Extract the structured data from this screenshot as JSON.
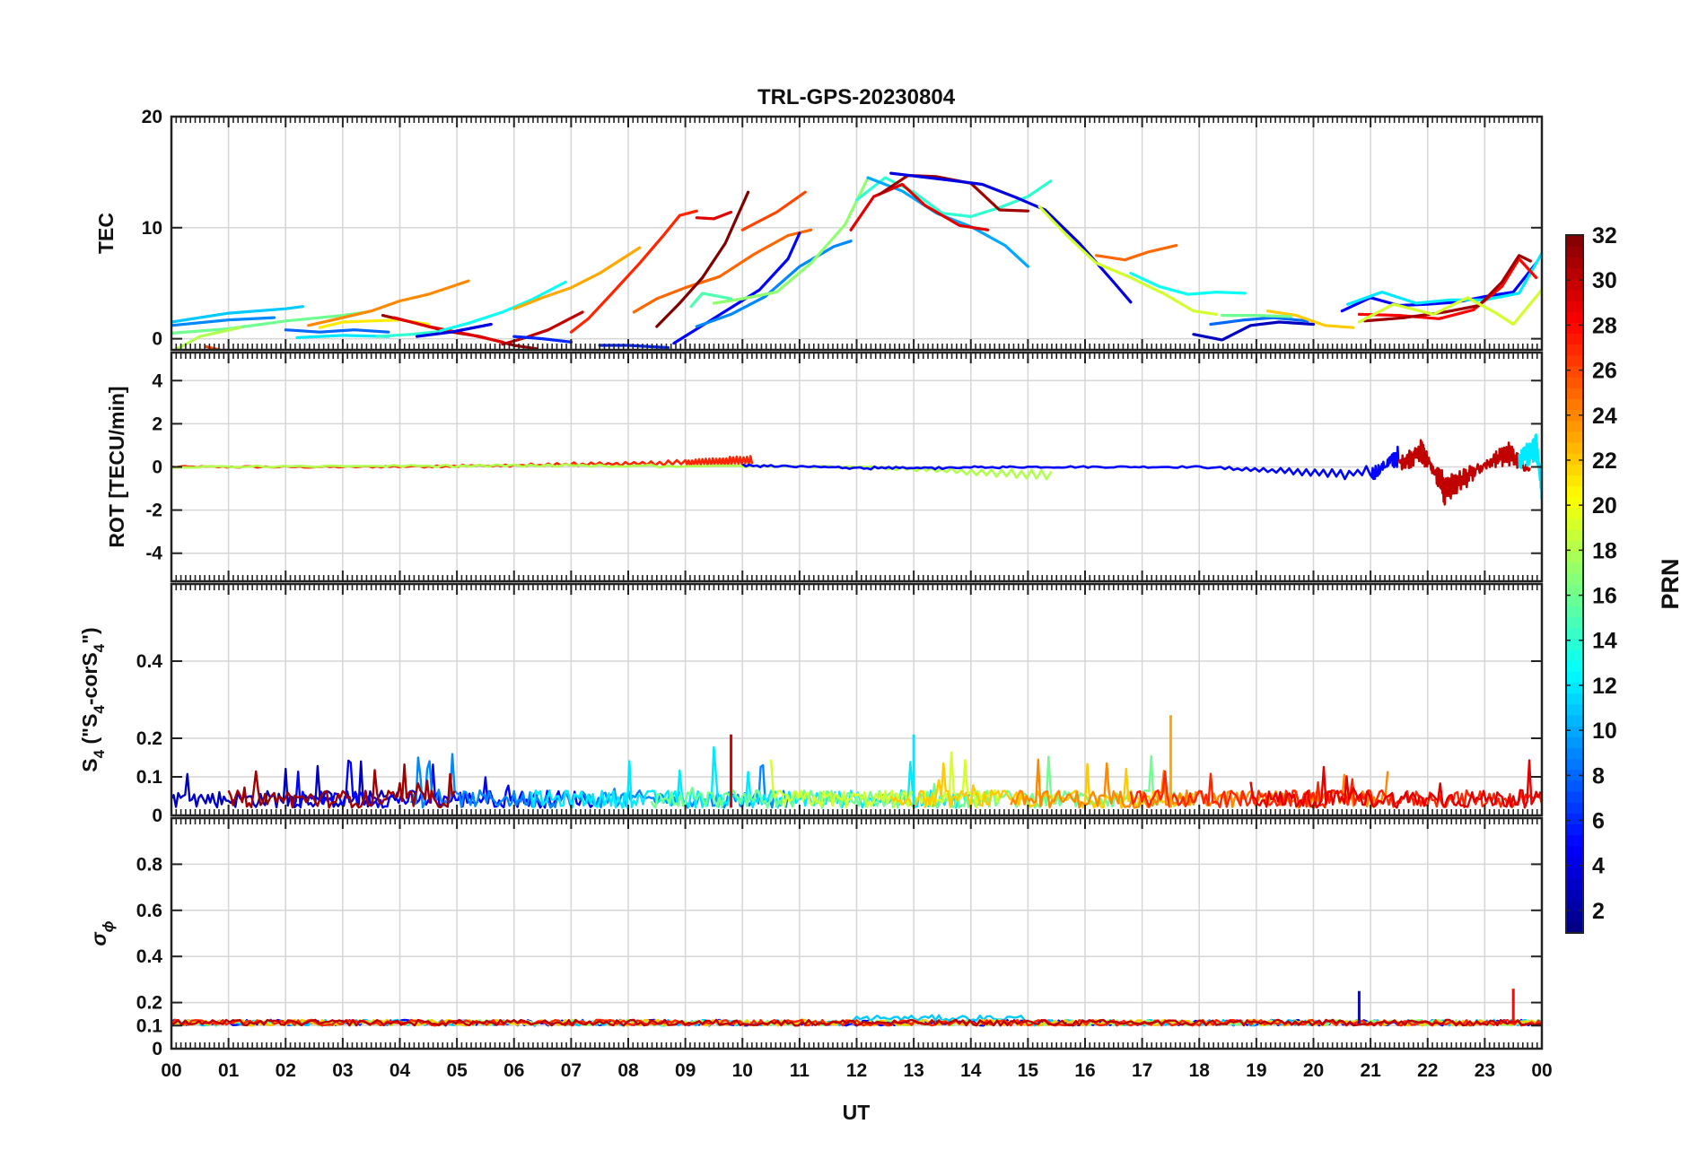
{
  "chart_data": {
    "type": "line",
    "title": "TRL-GPS-20230804",
    "xlabel": "UT",
    "x_ticks": [
      "00",
      "01",
      "02",
      "03",
      "04",
      "05",
      "06",
      "07",
      "08",
      "09",
      "10",
      "11",
      "12",
      "13",
      "14",
      "15",
      "16",
      "17",
      "18",
      "19",
      "20",
      "21",
      "22",
      "23",
      "00"
    ],
    "xlim": [
      0,
      24
    ],
    "grid": true,
    "panels": [
      {
        "ylabel": "TEC",
        "ylim": [
          -1,
          20
        ],
        "yticks": [
          0,
          10,
          20
        ]
      },
      {
        "ylabel": "ROT [TECU/min]",
        "ylim": [
          -5.3,
          5.3
        ],
        "yticks": [
          -4,
          -2,
          0,
          2,
          4
        ]
      },
      {
        "ylabel_parts": [
          "S",
          "4",
          " (\"S",
          "4",
          "-corS",
          "4",
          "\")"
        ],
        "ylim": [
          0,
          0.6
        ],
        "yticks": [
          0,
          0.1,
          0.2,
          0.4
        ]
      },
      {
        "ylabel_parts": [
          "σ",
          "ϕ"
        ],
        "ylim": [
          0,
          1
        ],
        "yticks": [
          0,
          0.1,
          0.2,
          0.4,
          0.6,
          0.8
        ]
      }
    ],
    "colorbar": {
      "label": "PRN",
      "range": [
        1,
        32
      ],
      "ticks": [
        2,
        4,
        6,
        8,
        10,
        12,
        14,
        16,
        18,
        20,
        22,
        24,
        26,
        28,
        30,
        32
      ],
      "colormap": "jet"
    },
    "tec_series": [
      {
        "prn": 11,
        "x": [
          0,
          1,
          2,
          2.3
        ],
        "y": [
          1.5,
          2.3,
          2.7,
          2.9
        ]
      },
      {
        "prn": 9,
        "x": [
          0,
          1,
          1.8
        ],
        "y": [
          1.2,
          1.7,
          1.9
        ]
      },
      {
        "prn": 16,
        "x": [
          0,
          1,
          2,
          3,
          3.4
        ],
        "y": [
          0.5,
          0.9,
          1.6,
          2.1,
          2.4
        ]
      },
      {
        "prn": 18,
        "x": [
          0,
          0.5,
          1.2
        ],
        "y": [
          -1.2,
          0.2,
          1.0
        ]
      },
      {
        "prn": 26,
        "x": [
          0.6,
          1,
          1.5,
          2,
          2.4
        ],
        "y": [
          -0.7,
          -1.2,
          -1.5,
          -1.5,
          -1.0
        ]
      },
      {
        "prn": 24,
        "x": [
          2.4,
          3,
          3.5,
          4,
          4.5,
          5.2
        ],
        "y": [
          1.2,
          1.9,
          2.5,
          3.4,
          4.0,
          5.2
        ]
      },
      {
        "prn": 21,
        "x": [
          2.6,
          3,
          3.5,
          4,
          4.5
        ],
        "y": [
          1.0,
          1.5,
          1.6,
          1.7,
          1.3
        ]
      },
      {
        "prn": 8,
        "x": [
          2,
          2.6,
          3.2,
          3.8
        ],
        "y": [
          0.8,
          0.6,
          0.8,
          0.6
        ]
      },
      {
        "prn": 12,
        "x": [
          2.2,
          3,
          3.8
        ],
        "y": [
          0.1,
          0.3,
          0.2
        ]
      },
      {
        "prn": 14,
        "x": [
          3.6,
          4.2,
          4.8
        ],
        "y": [
          0.2,
          0.4,
          0.7
        ]
      },
      {
        "prn": 31,
        "x": [
          3.7,
          4.2,
          4.8,
          5.4,
          6.0,
          6.4
        ],
        "y": [
          2.1,
          1.5,
          0.7,
          0.2,
          -0.6,
          -0.9
        ]
      },
      {
        "prn": 29,
        "x": [
          3.9,
          4.5,
          5.2,
          5.8
        ],
        "y": [
          1.9,
          1.1,
          0.4,
          -0.3
        ]
      },
      {
        "prn": 4,
        "x": [
          4.3,
          4.9,
          5.6
        ],
        "y": [
          0.2,
          0.6,
          1.3
        ]
      },
      {
        "prn": 13,
        "x": [
          4.7,
          5.2,
          5.8,
          6.3,
          6.9
        ],
        "y": [
          0.7,
          1.4,
          2.4,
          3.5,
          5.1
        ]
      },
      {
        "prn": 23,
        "x": [
          6.0,
          6.5,
          7,
          7.5,
          8.2
        ],
        "y": [
          2.7,
          3.7,
          4.6,
          5.9,
          8.2
        ]
      },
      {
        "prn": 30,
        "x": [
          5.8,
          6.2,
          6.6,
          7.2
        ],
        "y": [
          -0.5,
          0.1,
          0.8,
          2.4
        ]
      },
      {
        "prn": 6,
        "x": [
          6.0,
          6.5,
          7.0
        ],
        "y": [
          0.2,
          0.0,
          -0.3
        ]
      },
      {
        "prn": 32,
        "x": [
          6.5,
          7,
          7.5
        ],
        "y": [
          -1.3,
          -1.6,
          -1.2
        ]
      },
      {
        "prn": 27,
        "x": [
          7.0,
          7.3,
          7.7,
          8.2,
          8.6,
          8.9,
          9.2
        ],
        "y": [
          0.6,
          1.8,
          4.0,
          6.8,
          9.2,
          11.1,
          11.5
        ]
      },
      {
        "prn": 29,
        "x": [
          9.2,
          9.5,
          9.8
        ],
        "y": [
          10.9,
          10.8,
          11.4
        ]
      },
      {
        "prn": 25,
        "x": [
          8.1,
          8.5,
          9.0,
          9.6,
          10.2,
          10.8,
          11.2
        ],
        "y": [
          2.4,
          3.6,
          4.6,
          5.6,
          7.6,
          9.3,
          9.8
        ]
      },
      {
        "prn": 26,
        "x": [
          10.0,
          10.6,
          11.1
        ],
        "y": [
          9.8,
          11.4,
          13.2
        ]
      },
      {
        "prn": 32,
        "x": [
          8.5,
          8.9,
          9.3,
          9.7,
          10.1
        ],
        "y": [
          1.1,
          3.2,
          5.5,
          8.6,
          13.2
        ]
      },
      {
        "prn": 6,
        "x": [
          7.5,
          8.0,
          8.7
        ],
        "y": [
          -0.6,
          -0.6,
          -0.8
        ]
      },
      {
        "prn": 5,
        "x": [
          8.8,
          9.3,
          9.8,
          10.3,
          10.8,
          11.0
        ],
        "y": [
          -0.4,
          1.2,
          2.8,
          4.4,
          7.2,
          9.5
        ]
      },
      {
        "prn": 9,
        "x": [
          9.2,
          9.8,
          10.4,
          11.0,
          11.6,
          11.9
        ],
        "y": [
          1.1,
          2.2,
          3.8,
          6.5,
          8.3,
          8.8
        ]
      },
      {
        "prn": 17,
        "x": [
          9.5,
          10,
          10.6,
          11.2,
          11.8,
          12.2
        ],
        "y": [
          3.2,
          3.6,
          4.2,
          6.8,
          10.3,
          14.5
        ]
      },
      {
        "prn": 15,
        "x": [
          9.1,
          9.3,
          9.8
        ],
        "y": [
          2.9,
          4.1,
          3.6
        ]
      },
      {
        "prn": 14,
        "x": [
          12.0,
          12.5,
          13.0,
          13.5,
          14.0,
          14.5,
          15.0,
          15.4
        ],
        "y": [
          12.5,
          14.5,
          13.2,
          11.3,
          11.0,
          11.8,
          12.8,
          14.2
        ]
      },
      {
        "prn": 10,
        "x": [
          12.2,
          12.8,
          13.4,
          14.0,
          14.6,
          15.0
        ],
        "y": [
          14.5,
          13.3,
          11.3,
          10.1,
          8.4,
          6.5
        ]
      },
      {
        "prn": 29,
        "x": [
          11.9,
          12.3,
          12.8,
          13.2,
          13.8,
          14.3
        ],
        "y": [
          9.8,
          12.8,
          13.9,
          12.0,
          10.2,
          9.8
        ]
      },
      {
        "prn": 31,
        "x": [
          12.4,
          12.9,
          13.4,
          14.0,
          14.5,
          15.0
        ],
        "y": [
          13.0,
          14.7,
          14.6,
          14.0,
          11.6,
          11.5
        ]
      },
      {
        "prn": 4,
        "x": [
          12.6,
          13.1,
          13.6,
          14.2,
          14.8,
          15.3,
          15.9,
          16.5,
          16.8
        ],
        "y": [
          14.9,
          14.6,
          14.3,
          13.9,
          12.7,
          11.6,
          8.6,
          5.1,
          3.3
        ]
      },
      {
        "prn": 19,
        "x": [
          15.2,
          15.7,
          16.2,
          16.8,
          17.4,
          17.9,
          18.3
        ],
        "y": [
          11.9,
          9.2,
          6.8,
          5.5,
          4.0,
          2.5,
          2.2
        ]
      },
      {
        "prn": 25,
        "x": [
          16.2,
          16.7,
          17.1,
          17.6
        ],
        "y": [
          7.5,
          7.1,
          7.8,
          8.4
        ]
      },
      {
        "prn": 13,
        "x": [
          16.8,
          17.3,
          17.8,
          18.3,
          18.8
        ],
        "y": [
          5.9,
          4.7,
          4.0,
          4.2,
          4.1
        ]
      },
      {
        "prn": 3,
        "x": [
          17.9,
          18.4,
          18.9,
          19.4,
          20.0
        ],
        "y": [
          0.4,
          -0.1,
          1.2,
          1.5,
          1.3
        ]
      },
      {
        "prn": 8,
        "x": [
          18.2,
          18.8,
          19.3,
          19.9
        ],
        "y": [
          1.3,
          1.7,
          1.9,
          1.6
        ]
      },
      {
        "prn": 22,
        "x": [
          19.2,
          19.7,
          20.2,
          20.7
        ],
        "y": [
          2.5,
          2.1,
          1.2,
          1.0
        ]
      },
      {
        "prn": 16,
        "x": [
          18.4,
          19.0,
          19.6
        ],
        "y": [
          2.1,
          2.1,
          2.0
        ]
      },
      {
        "prn": 5,
        "x": [
          20.5,
          21.0,
          21.5,
          22.0,
          22.5,
          23.0,
          23.5,
          23.9
        ],
        "y": [
          2.5,
          3.7,
          3.0,
          3.1,
          3.3,
          3.8,
          4.2,
          6.8
        ]
      },
      {
        "prn": 12,
        "x": [
          20.6,
          21.2,
          21.8,
          22.4,
          23.0,
          23.6,
          24.0
        ],
        "y": [
          3.1,
          4.2,
          3.2,
          3.5,
          3.5,
          4.1,
          7.7
        ]
      },
      {
        "prn": 28,
        "x": [
          20.8,
          21.5,
          22.2,
          22.8,
          23.3,
          23.6,
          23.9
        ],
        "y": [
          2.2,
          2.1,
          1.8,
          2.6,
          4.7,
          7.2,
          5.5
        ]
      },
      {
        "prn": 31,
        "x": [
          20.9,
          21.6,
          22.3,
          22.9,
          23.3,
          23.6,
          23.8
        ],
        "y": [
          1.6,
          1.9,
          2.4,
          3.0,
          5.1,
          7.5,
          7.0
        ]
      },
      {
        "prn": 19,
        "x": [
          20.8,
          21.4,
          22.1,
          22.7,
          23.2,
          23.5,
          24.0
        ],
        "y": [
          1.5,
          3.1,
          2.2,
          3.7,
          2.3,
          1.3,
          4.4
        ]
      }
    ],
    "rot_series": [
      {
        "prn": 27,
        "x": [
          0,
          3,
          6,
          9,
          10.2
        ],
        "y": [
          0.0,
          0.0,
          0.1,
          0.3,
          0.5
        ]
      },
      {
        "prn": 18,
        "x": [
          0,
          6,
          12,
          15.5
        ],
        "y": [
          0.0,
          0.1,
          0.0,
          -0.6
        ]
      },
      {
        "prn": 5,
        "x": [
          10,
          12.5,
          15,
          18,
          21,
          21.5
        ],
        "y": [
          0.1,
          -0.1,
          0.0,
          0.0,
          -0.6,
          0.8
        ]
      },
      {
        "prn": 30,
        "x": [
          21.5,
          21.9,
          22.3,
          23.0,
          23.4,
          23.8
        ],
        "y": [
          0.2,
          1.1,
          -1.6,
          0.0,
          1.0,
          -0.3
        ]
      },
      {
        "prn": 12,
        "x": [
          23.6,
          23.9,
          24.0
        ],
        "y": [
          0.4,
          1.5,
          -1.4
        ]
      }
    ],
    "s4_summary": {
      "baseline": 0.05,
      "typical_max": 0.17,
      "peaks": [
        {
          "x": 9.8,
          "y": 0.21,
          "prn": 29
        },
        {
          "x": 17.5,
          "y": 0.26,
          "prn": 23
        },
        {
          "x": 13.0,
          "y": 0.21,
          "prn": 12
        }
      ]
    },
    "sigma_phi_summary": {
      "baseline": 0.11,
      "peaks": [
        {
          "x": 20.8,
          "y": 0.25,
          "prn": 5
        },
        {
          "x": 23.5,
          "y": 0.26,
          "prn": 28
        }
      ]
    }
  }
}
